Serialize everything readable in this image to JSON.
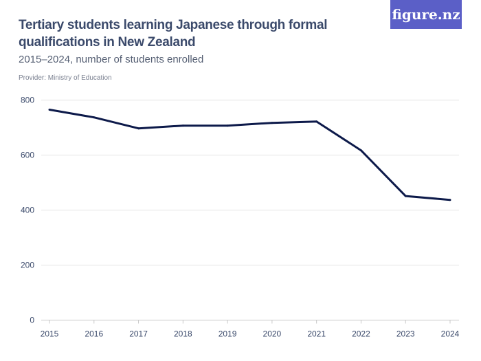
{
  "header": {
    "title": "Tertiary students learning Japanese through formal qualifications in New Zealand",
    "subtitle": "2015–2024, number of students enrolled",
    "provider": "Provider: Ministry of Education",
    "logo": "figure.nz"
  },
  "colors": {
    "line": "#0d1a4a",
    "grid": "#e3e3e3",
    "logo_bg": "#5b5fc7",
    "text": "#3b4a6b"
  },
  "chart_data": {
    "type": "line",
    "title": "Tertiary students learning Japanese through formal qualifications in New Zealand",
    "subtitle": "2015–2024, number of students enrolled",
    "xlabel": "",
    "ylabel": "",
    "categories": [
      "2015",
      "2016",
      "2017",
      "2018",
      "2019",
      "2020",
      "2021",
      "2022",
      "2023",
      "2024"
    ],
    "values": [
      765,
      737,
      697,
      707,
      707,
      717,
      722,
      617,
      451,
      437
    ],
    "ylim": [
      0,
      800
    ],
    "yticks": [
      "0",
      "200",
      "400",
      "600",
      "800"
    ],
    "grid": true,
    "legend": "none"
  }
}
